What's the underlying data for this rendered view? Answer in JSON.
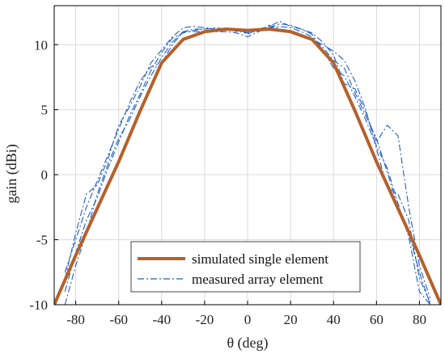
{
  "chart_data": {
    "type": "line",
    "title": "",
    "xlabel": "θ (deg)",
    "ylabel": "gain (dBi)",
    "xlim": [
      -90,
      90
    ],
    "ylim": [
      -10,
      13
    ],
    "xticks": [
      -80,
      -60,
      -40,
      -20,
      0,
      20,
      40,
      60,
      80
    ],
    "yticks": [
      -10,
      -5,
      0,
      5,
      10
    ],
    "xtick_labels": [
      "-80",
      "-60",
      "-40",
      "-20",
      "0",
      "20",
      "40",
      "60",
      "80"
    ],
    "ytick_labels": [
      "-10",
      "-5",
      "0",
      "5",
      "10"
    ],
    "grid": true,
    "legend_position": "bottom-center",
    "series": [
      {
        "name": "simulated single element",
        "style": "solid",
        "color": "#b5602c",
        "x": [
          -90,
          -80,
          -70,
          -60,
          -50,
          -40,
          -30,
          -20,
          -10,
          0,
          10,
          20,
          30,
          40,
          50,
          60,
          70,
          80,
          90
        ],
        "y": [
          -10.0,
          -6.2,
          -2.6,
          1.0,
          4.9,
          8.6,
          10.4,
          11.0,
          11.2,
          11.1,
          11.2,
          11.0,
          10.4,
          8.6,
          4.9,
          1.0,
          -2.6,
          -6.2,
          -10.0
        ]
      },
      {
        "name": "measured array element",
        "style": "dash-dot",
        "color": "#1f5fbf",
        "x": [
          -85,
          -80,
          -75,
          -70,
          -65,
          -60,
          -55,
          -50,
          -45,
          -40,
          -35,
          -30,
          -25,
          -20,
          -15,
          -10,
          -5,
          0,
          5,
          10,
          15,
          20,
          25,
          30,
          35,
          40,
          45,
          50,
          55,
          60,
          65,
          70,
          75,
          80,
          85
        ],
        "y": [
          -9.0,
          -6.0,
          -3.5,
          -1.8,
          0.5,
          2.5,
          4.5,
          6.2,
          8.0,
          9.4,
          10.5,
          10.9,
          11.1,
          11.2,
          11.3,
          11.2,
          11.1,
          10.9,
          11.2,
          11.3,
          11.4,
          11.3,
          11.0,
          10.6,
          9.8,
          8.8,
          8.2,
          6.3,
          4.5,
          2.8,
          0.2,
          -2.5,
          -4.5,
          -7.5,
          -10.0
        ]
      },
      {
        "name": "",
        "style": "dash-dot",
        "color": "#1f5fbf",
        "x": [
          -85,
          -80,
          -75,
          -70,
          -65,
          -60,
          -55,
          -50,
          -45,
          -40,
          -35,
          -30,
          -25,
          -20,
          -15,
          -10,
          -5,
          0,
          5,
          10,
          15,
          20,
          25,
          30,
          35,
          40,
          45,
          50,
          55,
          60,
          65,
          70,
          75,
          80,
          85
        ],
        "y": [
          -7.5,
          -5.0,
          -2.5,
          -0.5,
          1.5,
          3.5,
          5.5,
          7.2,
          8.3,
          8.6,
          10.0,
          11.0,
          11.2,
          11.2,
          11.0,
          11.0,
          10.9,
          10.6,
          11.0,
          11.3,
          11.6,
          11.5,
          11.2,
          10.9,
          10.2,
          9.2,
          7.0,
          6.6,
          4.8,
          2.5,
          3.8,
          3.0,
          -2.5,
          -7.0,
          -9.5
        ]
      },
      {
        "name": "",
        "style": "dash-dot",
        "color": "#1f5fbf",
        "x": [
          -85,
          -80,
          -75,
          -70,
          -65,
          -60,
          -55,
          -50,
          -45,
          -40,
          -35,
          -30,
          -25,
          -20,
          -15,
          -10,
          -5,
          0,
          5,
          10,
          15,
          20,
          25,
          30,
          35,
          40,
          45,
          50,
          55,
          60,
          65,
          70,
          75,
          80,
          85
        ],
        "y": [
          -10.0,
          -7.0,
          -4.5,
          -1.5,
          0.8,
          2.8,
          4.2,
          6.0,
          7.6,
          9.0,
          10.2,
          11.0,
          11.0,
          11.0,
          11.1,
          11.3,
          11.0,
          11.0,
          11.0,
          11.5,
          11.2,
          11.1,
          10.8,
          10.4,
          10.0,
          9.5,
          8.8,
          7.2,
          5.0,
          2.0,
          -1.0,
          -1.5,
          -3.5,
          -8.0,
          -9.8
        ]
      },
      {
        "name": "",
        "style": "dash-dot",
        "color": "#1f5fbf",
        "x": [
          -85,
          -80,
          -75,
          -70,
          -65,
          -60,
          -55,
          -50,
          -45,
          -40,
          -35,
          -30,
          -25,
          -20,
          -15,
          -10,
          -5,
          0,
          5,
          10,
          15,
          20,
          25,
          30,
          35,
          40,
          45,
          50,
          55,
          60,
          65,
          70,
          75,
          80,
          85
        ],
        "y": [
          -8.0,
          -4.5,
          -1.5,
          -0.8,
          1.2,
          3.8,
          5.2,
          6.8,
          8.6,
          9.6,
          10.6,
          11.3,
          11.4,
          11.3,
          11.2,
          11.2,
          11.2,
          10.8,
          11.2,
          11.4,
          11.8,
          11.4,
          11.2,
          10.8,
          9.6,
          8.2,
          7.6,
          6.0,
          4.2,
          2.2,
          0.5,
          -2.2,
          -4.8,
          -9.0,
          -10.0
        ]
      }
    ]
  }
}
